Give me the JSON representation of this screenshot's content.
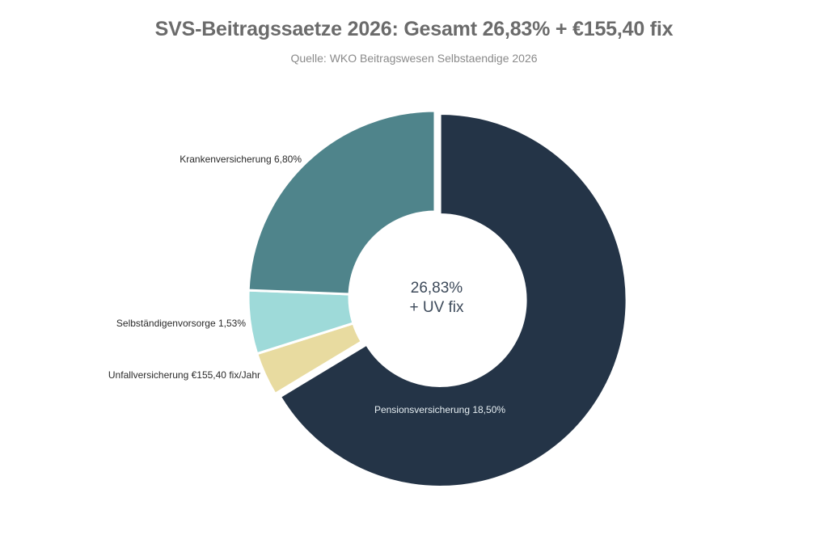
{
  "chart_data": {
    "type": "pie",
    "variant": "donut",
    "title": "SVS-Beitragssaetze 2026: Gesamt 26,83% + €155,40 fix",
    "subtitle": "Quelle: WKO Beitragswesen Selbstaendige 2026",
    "center_label": [
      "26,83%",
      "+ UV fix"
    ],
    "slices": [
      {
        "name": "Pensionsversicherung",
        "label": "Pensionsversicherung 18,50%",
        "value": 18.5,
        "color": "#243447",
        "exploded": true,
        "label_inside": true
      },
      {
        "name": "Unfallversicherung",
        "label": "Unfallversicherung €155,40 fix/Jahr",
        "value": 1.05,
        "color": "#e8dba0",
        "exploded": false,
        "label_inside": false
      },
      {
        "name": "Selbständigenvorsorge",
        "label": "Selbständigenvorsorge 1,53%",
        "value": 1.53,
        "color": "#9edad9",
        "exploded": false,
        "label_inside": false
      },
      {
        "name": "Krankenversicherung",
        "label": "Krankenversicherung 6,80%",
        "value": 6.8,
        "color": "#4f848b",
        "exploded": false,
        "label_inside": false
      }
    ],
    "total_percent": "26,83%",
    "fixed_amount": "€155,40 fix/Jahr",
    "legend": "none (labels beside slices)"
  }
}
